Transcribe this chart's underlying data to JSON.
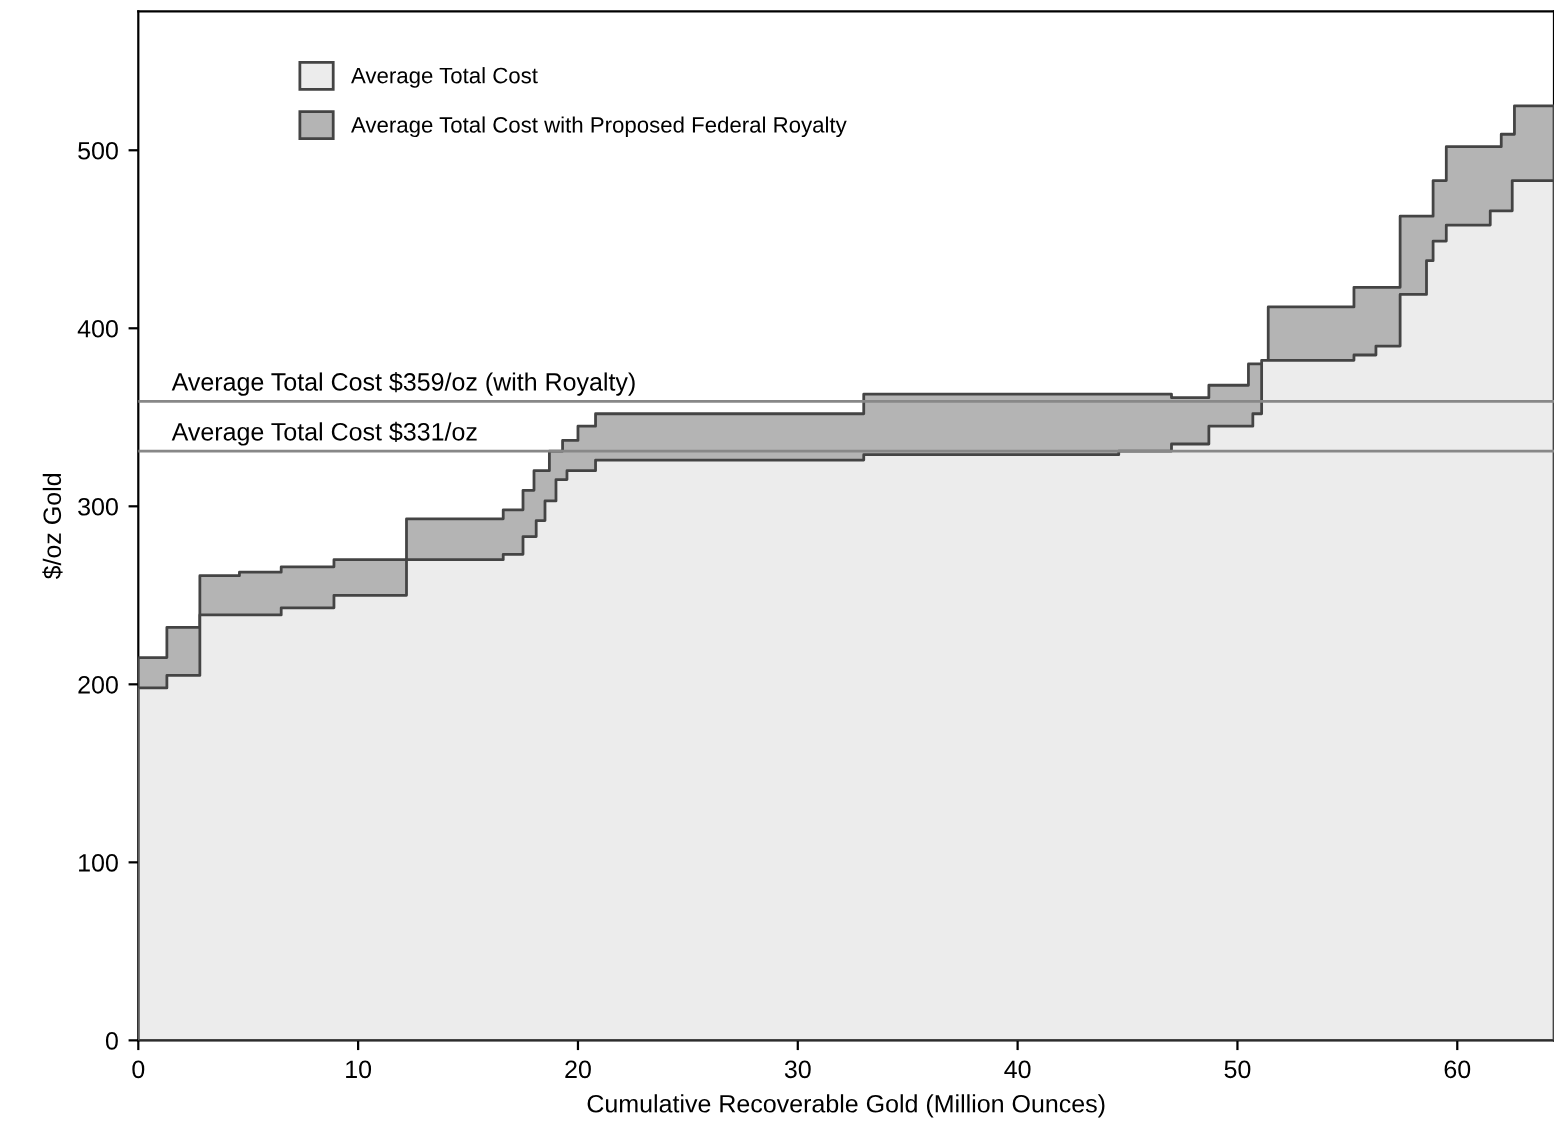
{
  "chart_data": {
    "type": "area",
    "xlabel": "Cumulative Recoverable Gold (Million Ounces)",
    "ylabel": "$/oz Gold",
    "xlim": [
      0,
      64.4
    ],
    "ylim": [
      0,
      578
    ],
    "xticks": [
      0,
      10,
      20,
      30,
      40,
      50,
      60
    ],
    "yticks": [
      0,
      100,
      200,
      300,
      400,
      500
    ],
    "legend": "top left",
    "grid": false,
    "series": [
      {
        "name": "Average Total Cost",
        "color": "#ececec",
        "x": [
          0,
          1.3,
          2.8,
          6.5,
          8.9,
          12.2,
          16.6,
          17.5,
          18.1,
          18.5,
          19,
          19.5,
          20.8,
          33,
          44.6,
          47,
          48.7,
          50.7,
          51.1,
          55.3,
          56.3,
          57.4,
          58.6,
          58.9,
          59.5,
          61.5,
          62.5,
          64.4
        ],
        "values": [
          198,
          205,
          239,
          243,
          250,
          270,
          273,
          283,
          292,
          303,
          315,
          320,
          326,
          329,
          331,
          335,
          345,
          352,
          382,
          385,
          390,
          419,
          438,
          449,
          458,
          466,
          483,
          483
        ]
      },
      {
        "name": "Average Total Cost with Proposed Federal Royalty",
        "color": "#b4b4b4",
        "x": [
          0,
          1.3,
          2.8,
          4.6,
          6.5,
          8.9,
          12.2,
          16.6,
          17.5,
          18,
          18.7,
          19.3,
          20,
          20.8,
          33,
          47,
          48.7,
          50.5,
          51.4,
          55.3,
          57.4,
          58.9,
          59.5,
          62,
          62.6,
          64.4
        ],
        "values": [
          215,
          232,
          261,
          263,
          266,
          270,
          293,
          298,
          309,
          320,
          331,
          337,
          345,
          352,
          363,
          361,
          368,
          380,
          412,
          423,
          463,
          483,
          502,
          509,
          525,
          525
        ]
      }
    ],
    "ref_lines": [
      {
        "axis": "y",
        "value": 359,
        "label": "Average Total Cost $359/oz (with Royalty)",
        "color": "#888888"
      },
      {
        "axis": "y",
        "value": 331,
        "label": "Average Total Cost $331/oz",
        "color": "#888888"
      }
    ]
  }
}
